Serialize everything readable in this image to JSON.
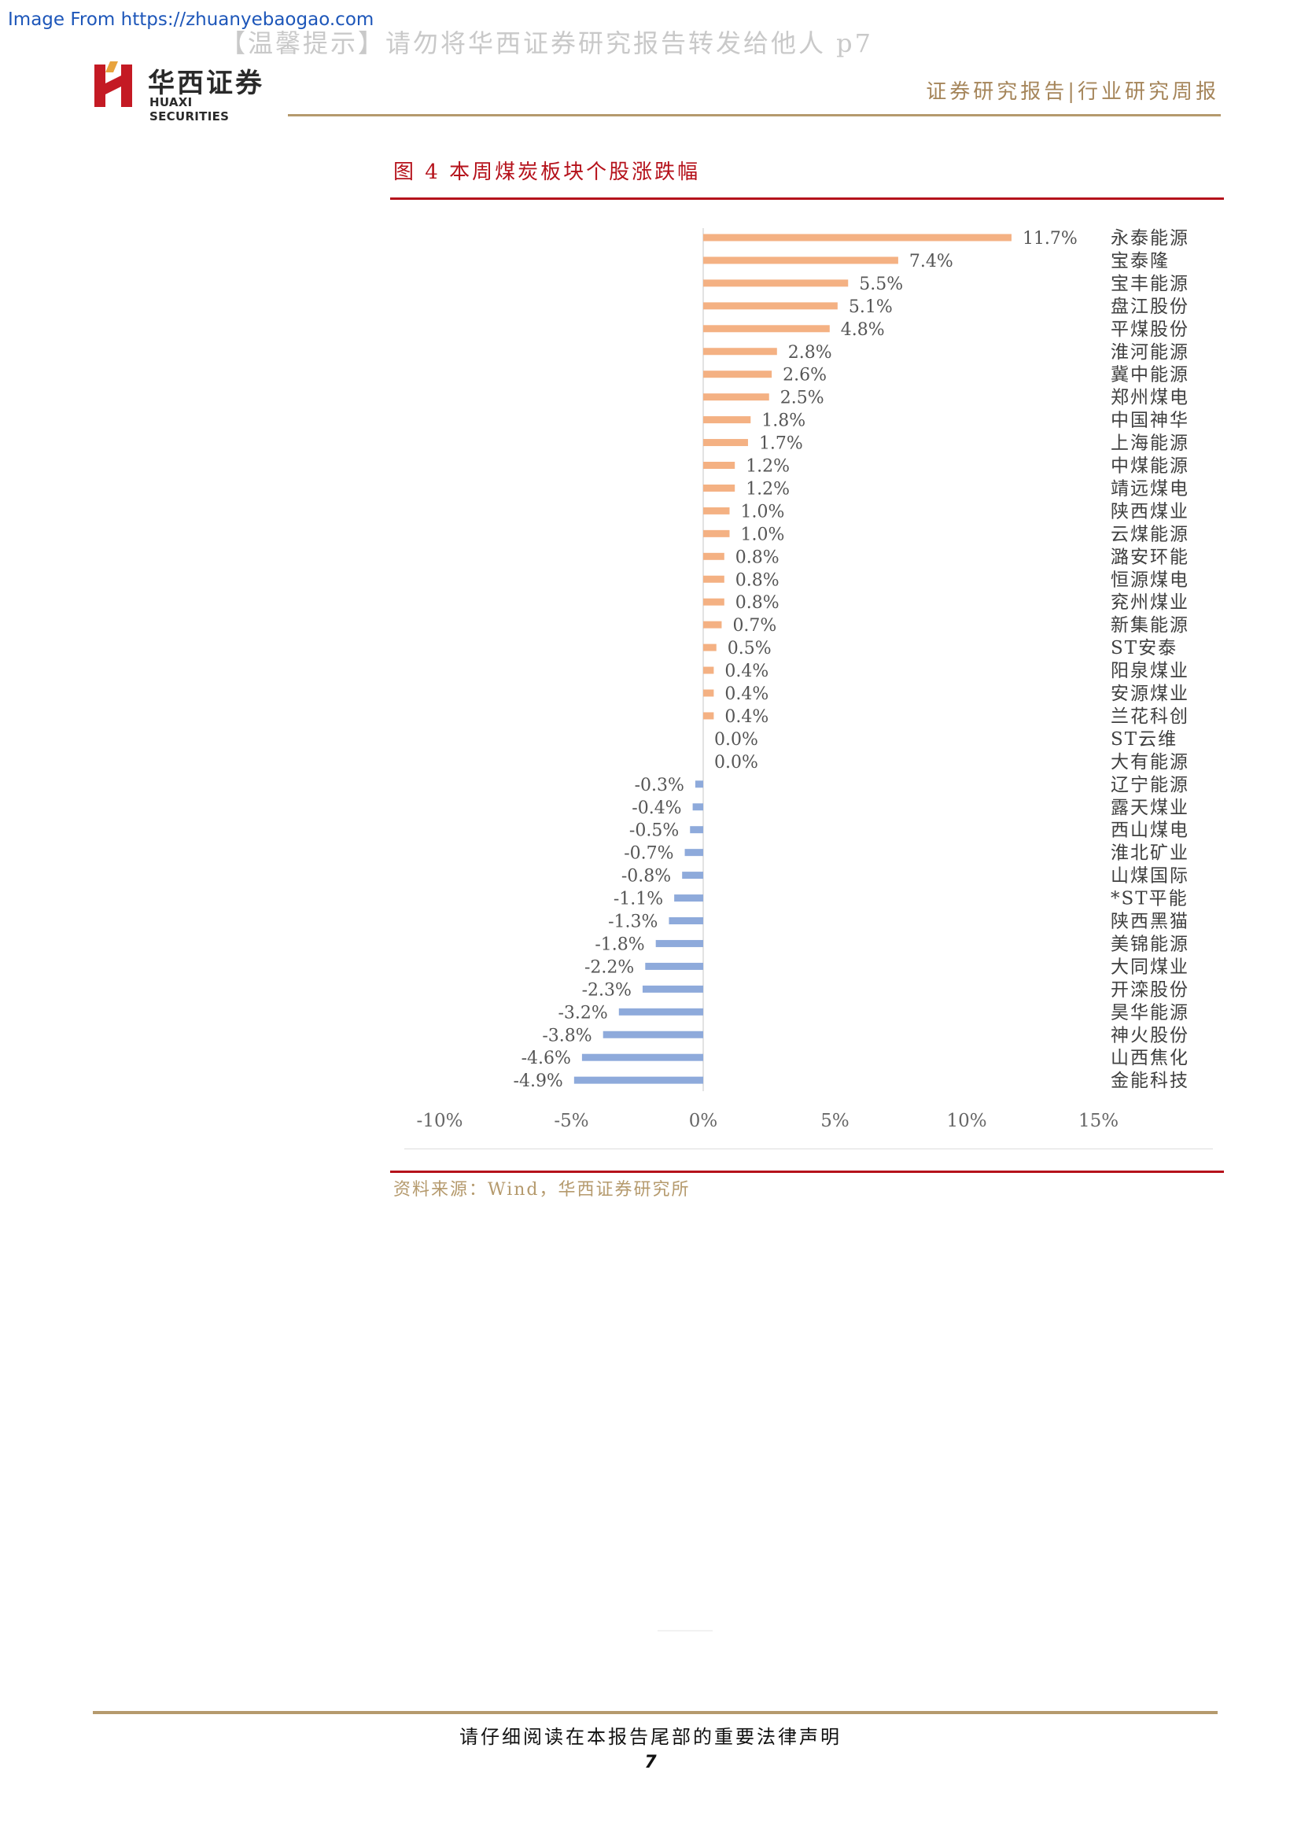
{
  "watermark_source": "Image From https://zhuanyebaogao.com",
  "notice": "【温馨提示】请勿将华西证券研究报告转发给他人 p7",
  "logo": {
    "name_cn": "华西证券",
    "name_en": "HUAXI SECURITIES",
    "mark_color": "#c41a24"
  },
  "report_type": "证券研究报告|行业研究周报",
  "figure_title": "图 4  本周煤炭板块个股涨跌幅",
  "source": "资料来源：Wind，华西证券研究所",
  "footer_notice": "请仔细阅读在本报告尾部的重要法律声明",
  "page_number": "7",
  "colors": {
    "positive": "#f4b183",
    "negative": "#8eaadb",
    "accent": "#b5121b",
    "gold": "#b59a6d"
  },
  "chart_data": {
    "type": "bar",
    "orientation": "horizontal",
    "categories": [
      "永泰能源",
      "宝泰隆",
      "宝丰能源",
      "盘江股份",
      "平煤股份",
      "淮河能源",
      "冀中能源",
      "郑州煤电",
      "中国神华",
      "上海能源",
      "中煤能源",
      "靖远煤电",
      "陕西煤业",
      "云煤能源",
      "潞安环能",
      "恒源煤电",
      "兖州煤业",
      "新集能源",
      "ST安泰",
      "阳泉煤业",
      "安源煤业",
      "兰花科创",
      "ST云维",
      "大有能源",
      "辽宁能源",
      "露天煤业",
      "西山煤电",
      "淮北矿业",
      "山煤国际",
      "*ST平能",
      "陕西黑猫",
      "美锦能源",
      "大同煤业",
      "开滦股份",
      "昊华能源",
      "神火股份",
      "山西焦化",
      "金能科技"
    ],
    "values": [
      11.7,
      7.4,
      5.5,
      5.1,
      4.8,
      2.8,
      2.6,
      2.5,
      1.8,
      1.7,
      1.2,
      1.2,
      1.0,
      1.0,
      0.8,
      0.8,
      0.8,
      0.7,
      0.5,
      0.4,
      0.4,
      0.4,
      0.0,
      0.0,
      -0.3,
      -0.4,
      -0.5,
      -0.7,
      -0.8,
      -1.1,
      -1.3,
      -1.8,
      -2.2,
      -2.3,
      -3.2,
      -3.8,
      -4.6,
      -4.9
    ],
    "value_labels": [
      "11.7%",
      "7.4%",
      "5.5%",
      "5.1%",
      "4.8%",
      "2.8%",
      "2.6%",
      "2.5%",
      "1.8%",
      "1.7%",
      "1.2%",
      "1.2%",
      "1.0%",
      "1.0%",
      "0.8%",
      "0.8%",
      "0.8%",
      "0.7%",
      "0.5%",
      "0.4%",
      "0.4%",
      "0.4%",
      "0.0%",
      "0.0%",
      "-0.3%",
      "-0.4%",
      "-0.5%",
      "-0.7%",
      "-0.8%",
      "-1.1%",
      "-1.3%",
      "-1.8%",
      "-2.2%",
      "-2.3%",
      "-3.2%",
      "-3.8%",
      "-4.6%",
      "-4.9%"
    ],
    "x_ticks": [
      -10,
      -5,
      0,
      5,
      10,
      15
    ],
    "x_tick_labels": [
      "-10%",
      "-5%",
      "0%",
      "5%",
      "10%",
      "15%"
    ],
    "xlim": [
      -10,
      15
    ],
    "grid": false,
    "legend": "none"
  }
}
